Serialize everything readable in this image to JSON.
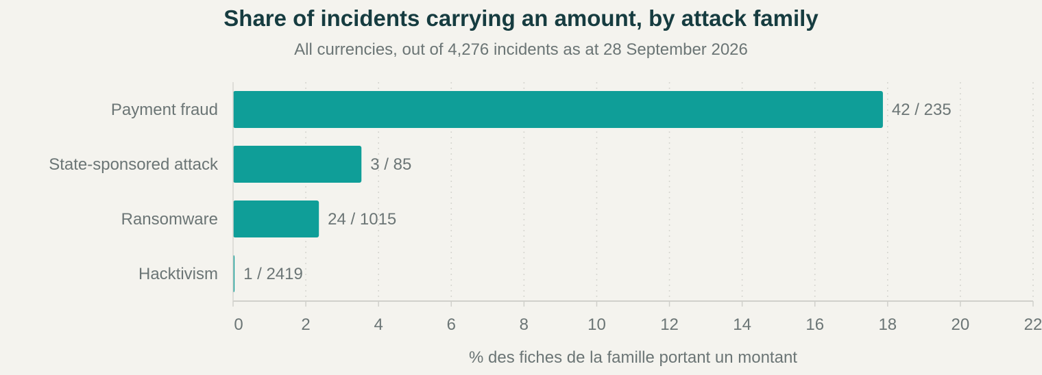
{
  "chart_data": {
    "type": "bar",
    "orientation": "horizontal",
    "title": "Share of incidents carrying an amount, by attack family",
    "subtitle": "All currencies, out of 4,276 incidents as at 28 September 2026",
    "xlabel": "% des fiches de la famille portant un montant",
    "ylabel": "",
    "xlim": [
      0,
      22
    ],
    "xticks": [
      0,
      2,
      4,
      6,
      8,
      10,
      12,
      14,
      16,
      18,
      20,
      22
    ],
    "grid": "vertical dotted",
    "legend": "none",
    "bar_color": "#0f9e98",
    "categories": [
      "Payment fraud",
      "State-sponsored attack",
      "Ransomware",
      "Hacktivism"
    ],
    "values": [
      17.87,
      3.53,
      2.36,
      0.04
    ],
    "data_labels": [
      "42 / 235",
      "3 / 85",
      "24 / 1015",
      "1 / 2419"
    ]
  }
}
